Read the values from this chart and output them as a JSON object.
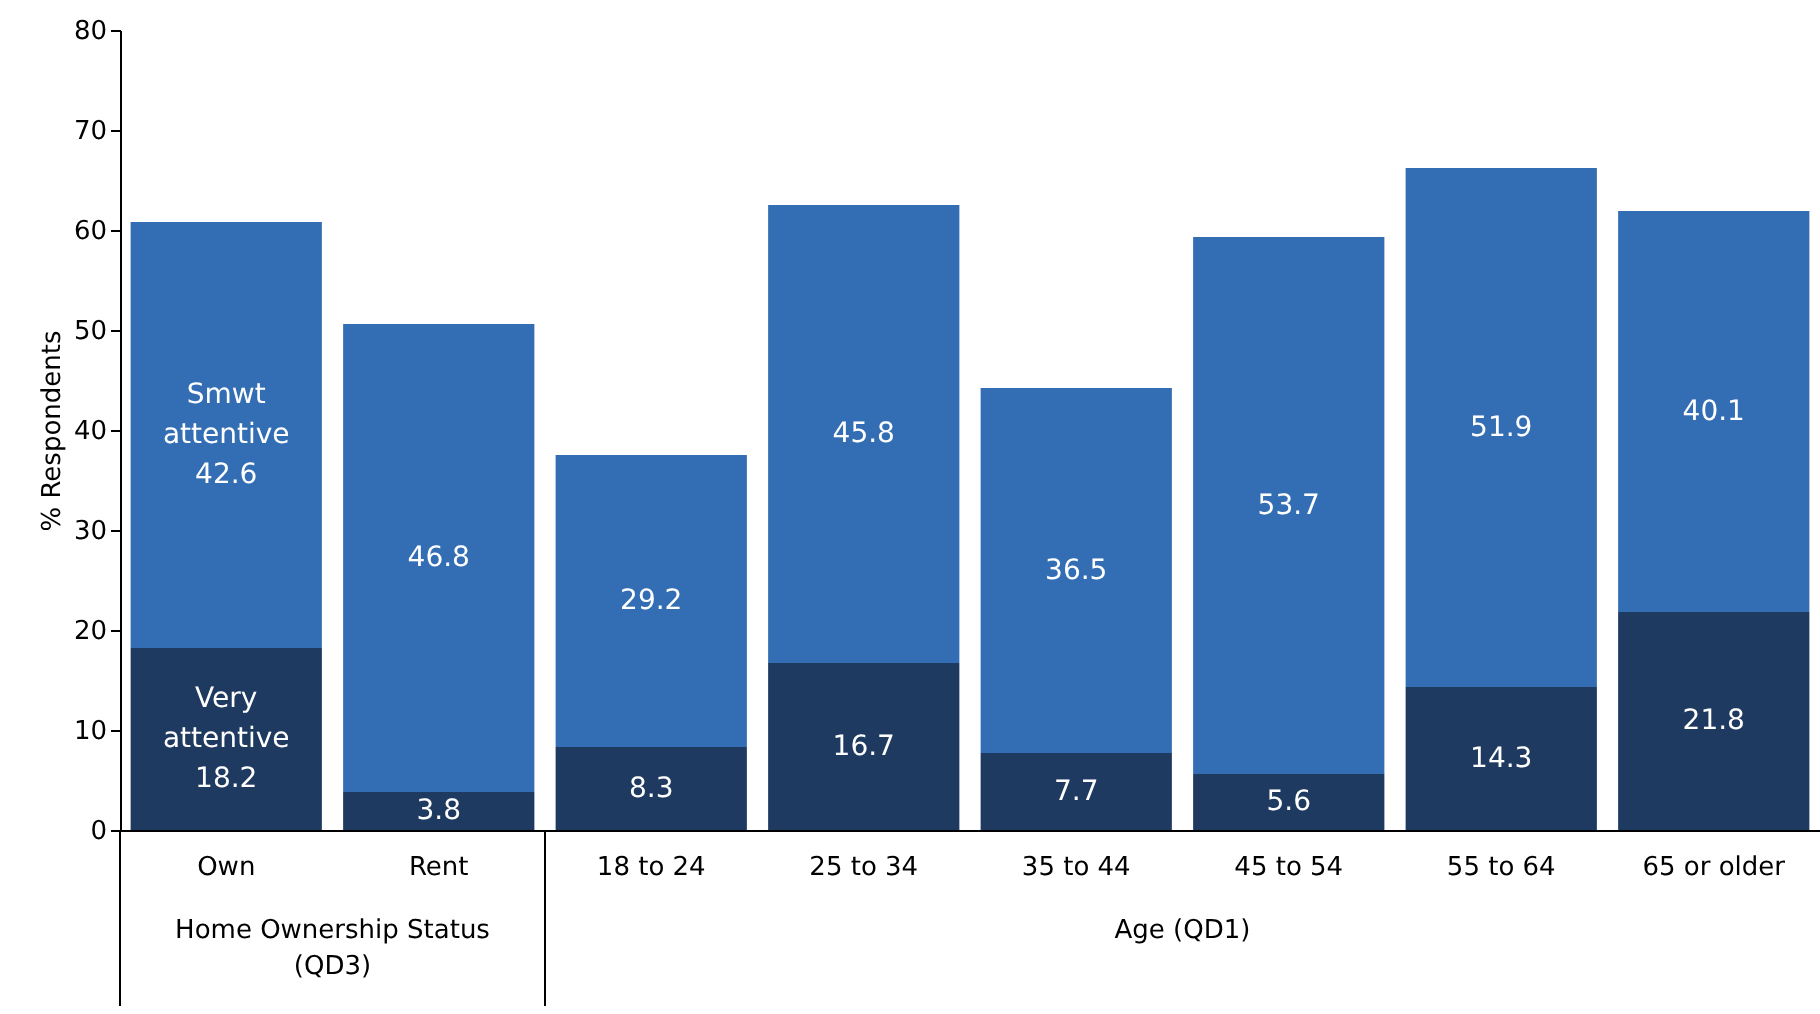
{
  "chart_data": {
    "type": "bar",
    "stacked": true,
    "ylabel": "% Respondents",
    "categories": [
      "Own",
      "Rent",
      "18 to 24",
      "25 to 34",
      "35 to 44",
      "45 to 54",
      "55 to 64",
      "65 or older"
    ],
    "series": [
      {
        "name": "Very attentive",
        "color": "#1f3a60",
        "values": [
          18.2,
          3.8,
          8.3,
          16.7,
          7.7,
          5.6,
          14.3,
          21.8
        ]
      },
      {
        "name": "Smwt attentive",
        "color": "#336eb4",
        "values": [
          42.6,
          46.8,
          29.2,
          45.8,
          36.5,
          53.7,
          51.9,
          40.1
        ]
      }
    ],
    "ylim": [
      0,
      80
    ],
    "yticks": [
      0,
      10,
      20,
      30,
      40,
      50,
      60,
      70,
      80
    ],
    "grid": false,
    "data_labels": true,
    "annotations": [
      "Home Ownership Status (QD3)",
      "Age (QD1)"
    ]
  }
}
